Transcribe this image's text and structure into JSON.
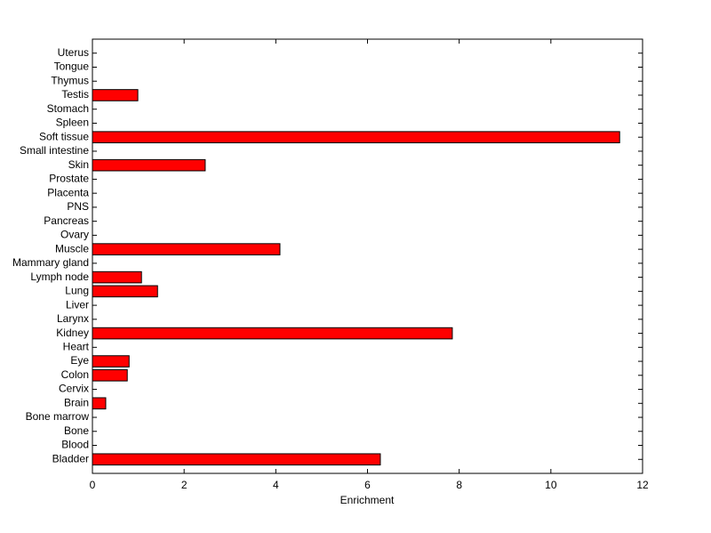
{
  "chart_data": {
    "type": "barh",
    "xlabel": "Enrichment",
    "categories": [
      "Bladder",
      "Blood",
      "Bone",
      "Bone marrow",
      "Brain",
      "Cervix",
      "Colon",
      "Eye",
      "Heart",
      "Kidney",
      "Larynx",
      "Liver",
      "Lung",
      "Lymph node",
      "Mammary gland",
      "Muscle",
      "Ovary",
      "Pancreas",
      "PNS",
      "Placenta",
      "Prostate",
      "Skin",
      "Small intestine",
      "Soft tissue",
      "Spleen",
      "Stomach",
      "Testis",
      "Thymus",
      "Tongue",
      "Uterus"
    ],
    "values": [
      6.28,
      0,
      0,
      0,
      0.29,
      0,
      0.76,
      0.8,
      0,
      7.85,
      0,
      0,
      1.42,
      1.07,
      0,
      4.09,
      0,
      0,
      0,
      0,
      0,
      2.46,
      0,
      11.5,
      0,
      0,
      0.99,
      0,
      0,
      0
    ],
    "color": "#ff0000",
    "xlim": [
      0,
      12
    ],
    "xticks": [
      0,
      2,
      4,
      6,
      8,
      10,
      12
    ]
  }
}
